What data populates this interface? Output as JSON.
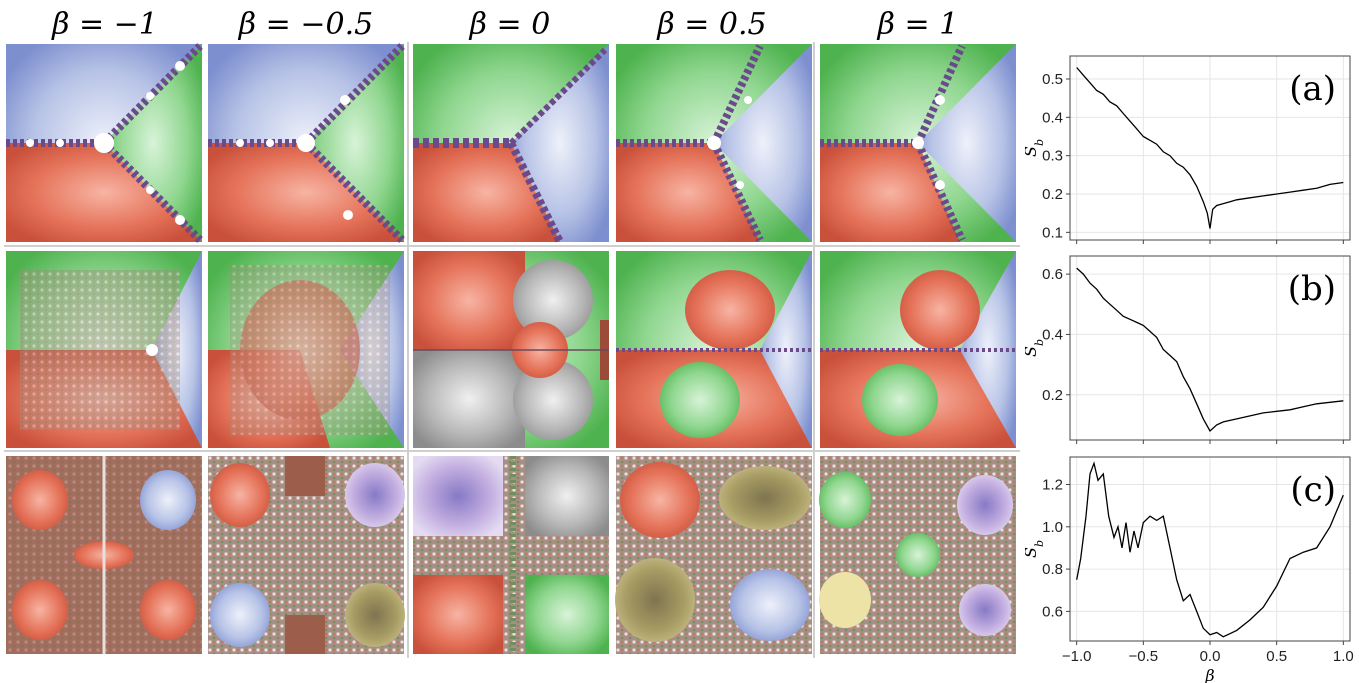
{
  "figure": {
    "column_headers": [
      "β = −1",
      "β = −0.5",
      "β = 0",
      "β = 0.5",
      "β = 1"
    ],
    "rows": [
      {
        "name": "row-1",
        "palette": [
          "#b7c3e6",
          "#8fd68f",
          "#e5735a"
        ]
      },
      {
        "name": "row-2",
        "palette": [
          "#9ddf9d",
          "#e5735a",
          "#c6cfee"
        ]
      },
      {
        "name": "row-3",
        "palette": [
          "#a0685a",
          "#c6b7de",
          "#e5735a"
        ]
      }
    ],
    "colors": {
      "blue": "#b7c3e6",
      "green": "#8fd68f",
      "red": "#e5735a",
      "grey": "#b8b8b8",
      "brown": "#9c5e4b",
      "purple": "#c3aee0",
      "olive": "#a79c63",
      "curve": "#000000",
      "grid": "#e6e6e6"
    }
  },
  "chart_data": [
    {
      "type": "line",
      "tag": "(a)",
      "ylabel": "S_b",
      "xlim": [
        -1.05,
        1.05
      ],
      "ylim": [
        0.08,
        0.56
      ],
      "yticks": [
        0.1,
        0.2,
        0.3,
        0.4,
        0.5
      ],
      "ytick_labels": [
        "0.1",
        "0.2",
        "0.3",
        "0.4",
        "0.5"
      ],
      "xticks": [
        -1.0,
        -0.5,
        0.0,
        0.5,
        1.0
      ],
      "xtick_labels": [],
      "grid": true,
      "x": [
        -1.0,
        -0.95,
        -0.9,
        -0.85,
        -0.8,
        -0.75,
        -0.7,
        -0.65,
        -0.6,
        -0.55,
        -0.5,
        -0.45,
        -0.4,
        -0.35,
        -0.3,
        -0.25,
        -0.2,
        -0.15,
        -0.1,
        -0.05,
        -0.02,
        0.0,
        0.02,
        0.05,
        0.1,
        0.15,
        0.2,
        0.3,
        0.4,
        0.5,
        0.6,
        0.7,
        0.8,
        0.9,
        1.0
      ],
      "y": [
        0.53,
        0.51,
        0.49,
        0.47,
        0.46,
        0.44,
        0.43,
        0.41,
        0.39,
        0.37,
        0.35,
        0.34,
        0.33,
        0.31,
        0.3,
        0.28,
        0.27,
        0.25,
        0.22,
        0.18,
        0.15,
        0.11,
        0.16,
        0.17,
        0.175,
        0.18,
        0.185,
        0.19,
        0.195,
        0.2,
        0.205,
        0.21,
        0.215,
        0.225,
        0.23
      ]
    },
    {
      "type": "line",
      "tag": "(b)",
      "ylabel": "S_b",
      "xlim": [
        -1.05,
        1.05
      ],
      "ylim": [
        0.05,
        0.66
      ],
      "yticks": [
        0.2,
        0.4,
        0.6
      ],
      "ytick_labels": [
        "0.2",
        "0.4",
        "0.6"
      ],
      "xticks": [
        -1.0,
        -0.5,
        0.0,
        0.5,
        1.0
      ],
      "xtick_labels": [],
      "grid": true,
      "x": [
        -1.0,
        -0.95,
        -0.9,
        -0.85,
        -0.8,
        -0.75,
        -0.7,
        -0.65,
        -0.6,
        -0.55,
        -0.5,
        -0.45,
        -0.4,
        -0.35,
        -0.3,
        -0.25,
        -0.2,
        -0.15,
        -0.1,
        -0.05,
        0.0,
        0.05,
        0.1,
        0.2,
        0.3,
        0.4,
        0.5,
        0.6,
        0.7,
        0.8,
        0.9,
        1.0
      ],
      "y": [
        0.62,
        0.6,
        0.57,
        0.55,
        0.52,
        0.5,
        0.48,
        0.46,
        0.45,
        0.44,
        0.43,
        0.41,
        0.39,
        0.35,
        0.33,
        0.31,
        0.26,
        0.22,
        0.17,
        0.12,
        0.08,
        0.1,
        0.11,
        0.12,
        0.13,
        0.14,
        0.145,
        0.15,
        0.16,
        0.17,
        0.175,
        0.18
      ]
    },
    {
      "type": "line",
      "tag": "(c)",
      "ylabel": "S_b",
      "xlabel": "β",
      "xlim": [
        -1.05,
        1.05
      ],
      "ylim": [
        0.46,
        1.33
      ],
      "yticks": [
        0.6,
        0.8,
        1.0,
        1.2
      ],
      "ytick_labels": [
        "0.6",
        "0.8",
        "1.0",
        "1.2"
      ],
      "xticks": [
        -1.0,
        -0.5,
        0.0,
        0.5,
        1.0
      ],
      "xtick_labels": [
        "−1.0",
        "−0.5",
        "0.0",
        "0.5",
        "1.0"
      ],
      "grid": true,
      "x": [
        -1.0,
        -0.97,
        -0.93,
        -0.9,
        -0.87,
        -0.84,
        -0.8,
        -0.76,
        -0.72,
        -0.69,
        -0.66,
        -0.63,
        -0.6,
        -0.57,
        -0.54,
        -0.5,
        -0.45,
        -0.4,
        -0.35,
        -0.3,
        -0.25,
        -0.2,
        -0.15,
        -0.1,
        -0.05,
        0.0,
        0.05,
        0.1,
        0.2,
        0.3,
        0.4,
        0.5,
        0.6,
        0.7,
        0.8,
        0.9,
        1.0
      ],
      "y": [
        0.75,
        0.85,
        1.05,
        1.25,
        1.3,
        1.22,
        1.25,
        1.05,
        0.95,
        1.0,
        0.9,
        1.02,
        0.88,
        0.98,
        0.9,
        1.02,
        1.05,
        1.03,
        1.05,
        0.9,
        0.75,
        0.65,
        0.68,
        0.6,
        0.52,
        0.49,
        0.5,
        0.48,
        0.51,
        0.56,
        0.62,
        0.72,
        0.85,
        0.88,
        0.9,
        1.0,
        1.15
      ]
    }
  ]
}
